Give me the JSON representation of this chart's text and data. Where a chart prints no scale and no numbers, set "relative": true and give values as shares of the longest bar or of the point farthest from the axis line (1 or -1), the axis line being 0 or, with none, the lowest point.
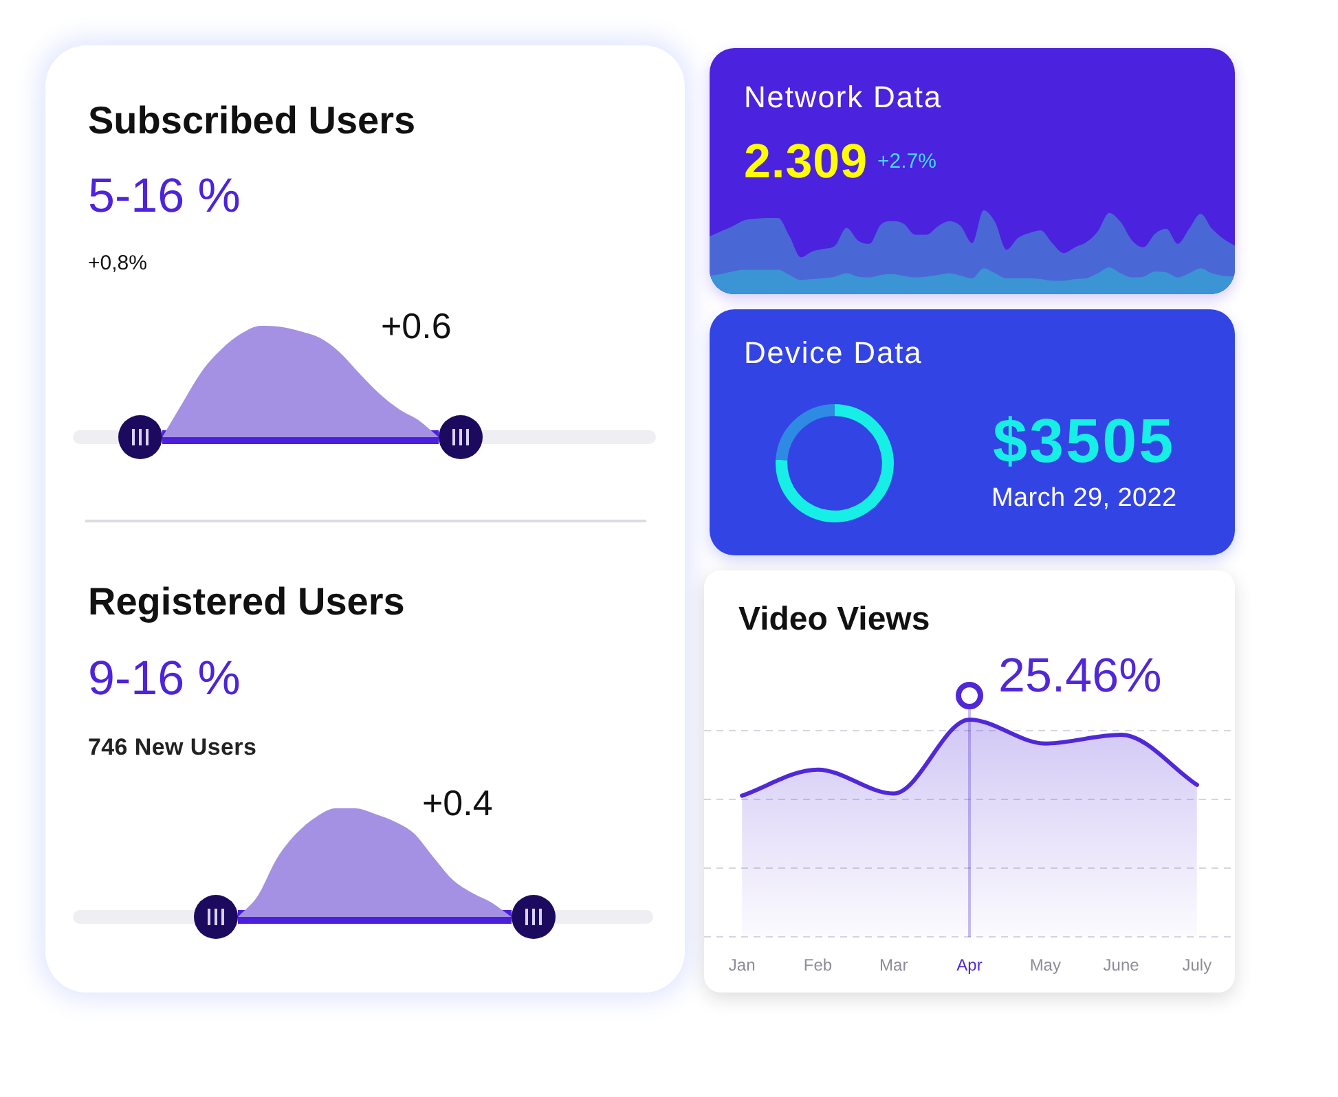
{
  "chart_data": [
    {
      "type": "area",
      "title": "Subscribed Users",
      "subtitle": "5-16 %",
      "annotations": [
        "+0,8%",
        "+0.6"
      ],
      "categories": [
        null,
        null,
        null,
        null,
        null,
        null,
        null,
        null,
        null,
        null,
        null,
        null,
        null,
        null,
        null
      ],
      "values": [
        0,
        0.3,
        0.59,
        0.79,
        0.93,
        1,
        0.99,
        0.95,
        0.89,
        0.76,
        0.57,
        0.39,
        0.25,
        0.15,
        0
      ],
      "color": "#a491e3",
      "relative": true,
      "tick_labels": false
    },
    {
      "type": "area",
      "title": "Registered Users",
      "subtitle": "9-16 %",
      "annotations": [
        "746 New Users",
        "+0.4"
      ],
      "categories": [
        null,
        null,
        null,
        null,
        null,
        null,
        null,
        null,
        null,
        null,
        null,
        null,
        null,
        null,
        null
      ],
      "values": [
        0,
        0.19,
        0.54,
        0.77,
        0.92,
        1,
        1,
        0.95,
        0.88,
        0.77,
        0.55,
        0.34,
        0.22,
        0.13,
        0
      ],
      "color": "#a491e3",
      "relative": true,
      "tick_labels": false
    },
    {
      "type": "area",
      "title": "Network Data",
      "subtitle": "2.309",
      "annotations": [
        "+2.7%"
      ],
      "categories": [
        null,
        null,
        null,
        null,
        null,
        null,
        null,
        null,
        null,
        null,
        null,
        null,
        null,
        null,
        null,
        null,
        null,
        null,
        null,
        null,
        null,
        null,
        null,
        null,
        null,
        null,
        null,
        null,
        null,
        null,
        null,
        null,
        null,
        null,
        null,
        null,
        null,
        null,
        null,
        null,
        null,
        null,
        null,
        null,
        null,
        null,
        null
      ],
      "series": [
        {
          "color": "#4a67d6",
          "values": [
            0.69,
            0.75,
            0.81,
            0.88,
            0.9,
            0.91,
            0.91,
            0.69,
            0.44,
            0.51,
            0.54,
            0.58,
            0.79,
            0.64,
            0.6,
            0.83,
            0.87,
            0.84,
            0.71,
            0.71,
            0.81,
            0.87,
            0.81,
            0.61,
            1,
            0.86,
            0.53,
            0.67,
            0.73,
            0.76,
            0.61,
            0.49,
            0.56,
            0.62,
            0.75,
            0.97,
            0.86,
            0.64,
            0.56,
            0.72,
            0.78,
            0.6,
            0.78,
            0.96,
            0.78,
            0.66,
            0.58
          ]
        },
        {
          "color": "#3b94d4",
          "values": [
            0.22,
            0.24,
            0.27,
            0.29,
            0.29,
            0.29,
            0.29,
            0.23,
            0.17,
            0.18,
            0.19,
            0.21,
            0.25,
            0.21,
            0.2,
            0.23,
            0.24,
            0.22,
            0.2,
            0.21,
            0.23,
            0.25,
            0.22,
            0.19,
            0.31,
            0.25,
            0.19,
            0.19,
            0.19,
            0.18,
            0.16,
            0.16,
            0.18,
            0.19,
            0.25,
            0.32,
            0.25,
            0.2,
            0.21,
            0.27,
            0.26,
            0.2,
            0.25,
            0.31,
            0.25,
            0.22,
            0.21
          ]
        }
      ],
      "relative": true,
      "tick_labels": false
    },
    {
      "type": "donut",
      "title": "Device Data",
      "annotations": [
        "$3505",
        "March 29, 2022"
      ],
      "categories": [
        null,
        null
      ],
      "values": [
        76,
        24
      ],
      "colors": [
        "#17efe6",
        "#2e8ae3"
      ]
    },
    {
      "type": "area",
      "title": "Video Views",
      "categories": [
        "Jan",
        "Feb",
        "Mar",
        "Apr",
        "May",
        "June",
        "July"
      ],
      "values": [
        0.65,
        0.77,
        0.66,
        1,
        0.89,
        0.93,
        0.7
      ],
      "color": "#5028d8",
      "relative": true,
      "grid": "y",
      "tick_labels": "x",
      "ref_lines": [
        {
          "axis": "x",
          "value": "Apr",
          "label": "25.46%"
        }
      ]
    }
  ]
}
